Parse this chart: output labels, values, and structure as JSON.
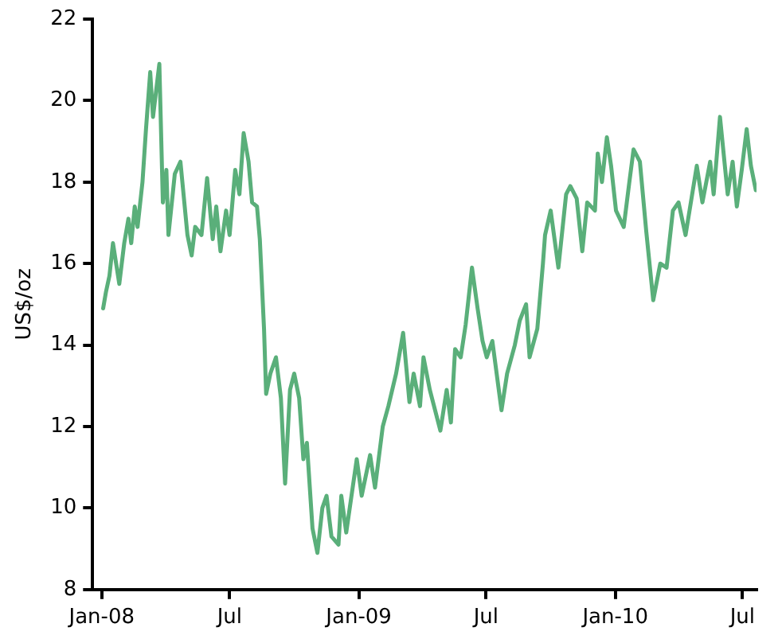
{
  "chart_data": {
    "type": "line",
    "ylabel": "US$/oz",
    "x": [
      "2008-01-03",
      "2008-01-07",
      "2008-01-12",
      "2008-01-17",
      "2008-01-26",
      "2008-02-02",
      "2008-02-08",
      "2008-02-12",
      "2008-02-17",
      "2008-02-21",
      "2008-02-28",
      "2008-03-04",
      "2008-03-10",
      "2008-03-14",
      "2008-03-23",
      "2008-03-28",
      "2008-04-02",
      "2008-04-05",
      "2008-04-14",
      "2008-04-22",
      "2008-05-02",
      "2008-05-08",
      "2008-05-13",
      "2008-05-22",
      "2008-05-30",
      "2008-06-07",
      "2008-06-12",
      "2008-06-18",
      "2008-06-26",
      "2008-07-01",
      "2008-07-09",
      "2008-07-15",
      "2008-07-21",
      "2008-07-28",
      "2008-08-02",
      "2008-08-09",
      "2008-08-13",
      "2008-08-19",
      "2008-08-22",
      "2008-08-28",
      "2008-09-05",
      "2008-09-12",
      "2008-09-18",
      "2008-09-25",
      "2008-10-01",
      "2008-10-08",
      "2008-10-14",
      "2008-10-19",
      "2008-10-27",
      "2008-11-03",
      "2008-11-10",
      "2008-11-16",
      "2008-11-23",
      "2008-12-03",
      "2008-12-07",
      "2008-12-14",
      "2008-12-29",
      "2009-01-05",
      "2009-01-17",
      "2009-01-24",
      "2009-02-04",
      "2009-02-12",
      "2009-02-23",
      "2009-03-05",
      "2009-03-14",
      "2009-03-20",
      "2009-03-29",
      "2009-04-03",
      "2009-04-12",
      "2009-04-27",
      "2009-05-06",
      "2009-05-12",
      "2009-05-18",
      "2009-05-26",
      "2009-06-02",
      "2009-06-11",
      "2009-06-19",
      "2009-06-26",
      "2009-07-02",
      "2009-07-10",
      "2009-07-23",
      "2009-07-31",
      "2009-08-11",
      "2009-08-18",
      "2009-08-27",
      "2009-09-01",
      "2009-09-12",
      "2009-09-20",
      "2009-09-23",
      "2009-10-01",
      "2009-10-12",
      "2009-10-23",
      "2009-10-29",
      "2009-11-07",
      "2009-11-15",
      "2009-11-22",
      "2009-12-03",
      "2009-12-07",
      "2009-12-13",
      "2009-12-20",
      "2009-12-26",
      "2010-01-02",
      "2010-01-13",
      "2010-01-21",
      "2010-01-27",
      "2010-02-05",
      "2010-02-14",
      "2010-02-24",
      "2010-03-06",
      "2010-03-15",
      "2010-03-24",
      "2010-04-01",
      "2010-04-11",
      "2010-04-27",
      "2010-05-05",
      "2010-05-16",
      "2010-05-21",
      "2010-05-30",
      "2010-06-10",
      "2010-06-17",
      "2010-06-23",
      "2010-06-30",
      "2010-07-07",
      "2010-07-13",
      "2010-07-20"
    ],
    "series": [
      {
        "color": "#5aaf7a",
        "values": [
          14.9,
          15.3,
          15.7,
          16.5,
          15.5,
          16.5,
          17.1,
          16.5,
          17.4,
          16.9,
          18.0,
          19.3,
          20.7,
          19.6,
          20.9,
          17.5,
          18.3,
          16.7,
          18.2,
          18.5,
          16.7,
          16.2,
          16.9,
          16.7,
          18.1,
          16.6,
          17.4,
          16.3,
          17.3,
          16.7,
          18.3,
          17.7,
          19.2,
          18.5,
          17.5,
          17.4,
          16.6,
          14.4,
          12.8,
          13.3,
          13.7,
          12.7,
          10.6,
          12.9,
          13.3,
          12.7,
          11.2,
          11.6,
          9.5,
          8.9,
          10.0,
          10.3,
          9.3,
          9.1,
          10.3,
          9.4,
          11.2,
          10.3,
          11.3,
          10.5,
          12.0,
          12.5,
          13.3,
          14.3,
          12.6,
          13.3,
          12.5,
          13.7,
          12.9,
          11.9,
          12.9,
          12.1,
          13.9,
          13.7,
          14.5,
          15.9,
          14.9,
          14.1,
          13.7,
          14.1,
          12.4,
          13.3,
          14.0,
          14.6,
          15.0,
          13.7,
          14.4,
          16.0,
          16.7,
          17.3,
          15.9,
          17.7,
          17.9,
          17.6,
          16.3,
          17.5,
          17.3,
          18.7,
          18.0,
          19.1,
          18.4,
          17.3,
          16.9,
          18.0,
          18.8,
          18.5,
          16.8,
          15.1,
          16.0,
          15.9,
          17.3,
          17.5,
          16.7,
          18.4,
          17.5,
          18.5,
          17.7,
          19.6,
          17.7,
          18.5,
          17.4,
          18.3,
          19.3,
          18.4,
          17.8
        ]
      }
    ],
    "xlim": [
      "2007-12-19",
      "2010-07-21"
    ],
    "xticks": [
      {
        "value": "2008-01-01",
        "label": "Jan-08"
      },
      {
        "value": "2008-07-01",
        "label": "Jul"
      },
      {
        "value": "2009-01-01",
        "label": "Jan-09"
      },
      {
        "value": "2009-07-01",
        "label": "Jul"
      },
      {
        "value": "2010-01-01",
        "label": "Jan-10"
      },
      {
        "value": "2010-07-01",
        "label": "Jul"
      }
    ],
    "ylim": [
      8,
      22
    ],
    "yticks": [
      8,
      10,
      12,
      14,
      16,
      18,
      20,
      22
    ],
    "grid": false,
    "legend": false,
    "marker": "none",
    "line_style": "solid"
  }
}
